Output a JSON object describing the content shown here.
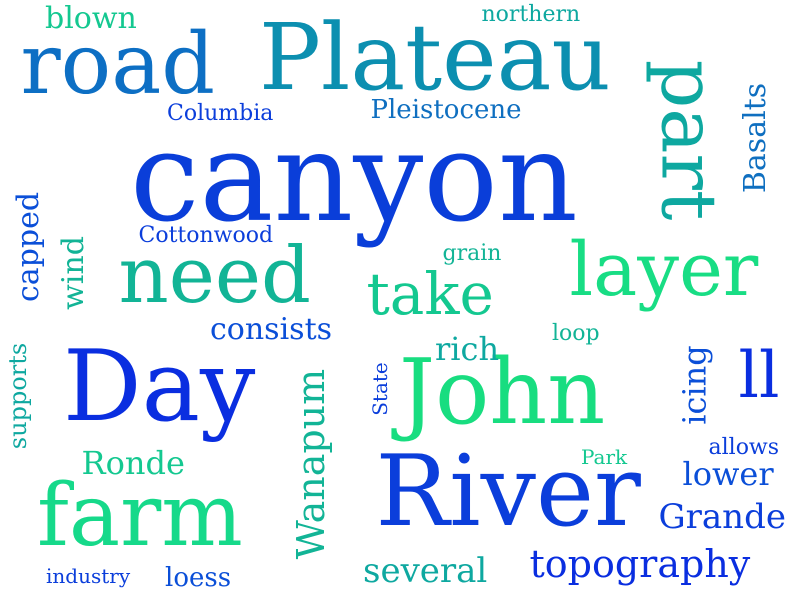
{
  "colors": {
    "background": "#ffffff",
    "palette": [
      "#0a2be0",
      "#0b4fd8",
      "#0f6fc0",
      "#0c8cad",
      "#0ea89a",
      "#10c48a",
      "#16dd84"
    ]
  },
  "words": [
    {
      "id": "canyon",
      "text": "canyon",
      "color": "#0a3ed9"
    },
    {
      "id": "river",
      "text": "River",
      "color": "#0b3edb"
    },
    {
      "id": "plateau",
      "text": "Plateau",
      "color": "#0c8fb0"
    },
    {
      "id": "road",
      "text": "road",
      "color": "#0d6fc4"
    },
    {
      "id": "day",
      "text": "Day",
      "color": "#0a2ee0"
    },
    {
      "id": "john",
      "text": "John",
      "color": "#18dd80"
    },
    {
      "id": "farm",
      "text": "farm",
      "color": "#16d98a"
    },
    {
      "id": "need",
      "text": "need",
      "color": "#12b496"
    },
    {
      "id": "layer",
      "text": "layer",
      "color": "#18dd84"
    },
    {
      "id": "part",
      "text": "part",
      "color": "#0ea8a0"
    },
    {
      "id": "take",
      "text": "take",
      "color": "#14c890"
    },
    {
      "id": "ll",
      "text": "ll",
      "color": "#0a2ee0"
    },
    {
      "id": "topography",
      "text": "topography",
      "color": "#0a2ee0"
    },
    {
      "id": "grande",
      "text": "Grande",
      "color": "#0b3edb"
    },
    {
      "id": "wanapum",
      "text": "Wanapum",
      "color": "#12b496"
    },
    {
      "id": "several",
      "text": "several",
      "color": "#0ea8a0"
    },
    {
      "id": "lower",
      "text": "lower",
      "color": "#0b4fd8"
    },
    {
      "id": "ronde",
      "text": "Ronde",
      "color": "#14c890"
    },
    {
      "id": "consists",
      "text": "consists",
      "color": "#0b4fd8"
    },
    {
      "id": "basalts",
      "text": "Basalts",
      "color": "#0f6fc0"
    },
    {
      "id": "icing",
      "text": "icing",
      "color": "#0b4fd8"
    },
    {
      "id": "capped",
      "text": "capped",
      "color": "#0b4fd8"
    },
    {
      "id": "rich",
      "text": "rich",
      "color": "#0ea8a0"
    },
    {
      "id": "wind",
      "text": "wind",
      "color": "#12b496"
    },
    {
      "id": "pleistocene",
      "text": "Pleistocene",
      "color": "#0f6fc0"
    },
    {
      "id": "blown",
      "text": "blown",
      "color": "#14c890"
    },
    {
      "id": "supports",
      "text": "supports",
      "color": "#0ea8a0"
    },
    {
      "id": "loess",
      "text": "loess",
      "color": "#0b4fd8"
    },
    {
      "id": "columbia",
      "text": "Columbia",
      "color": "#0b3edb"
    },
    {
      "id": "cottonwood",
      "text": "Cottonwood",
      "color": "#0b3edb"
    },
    {
      "id": "northern",
      "text": "northern",
      "color": "#0ea8a0"
    },
    {
      "id": "grain",
      "text": "grain",
      "color": "#12b496"
    },
    {
      "id": "allows",
      "text": "allows",
      "color": "#0b3edb"
    },
    {
      "id": "industry",
      "text": "industry",
      "color": "#0b3edb"
    },
    {
      "id": "loop",
      "text": "loop",
      "color": "#12b496"
    },
    {
      "id": "state",
      "text": "State",
      "color": "#0b3edb"
    },
    {
      "id": "park",
      "text": "Park",
      "color": "#14c890"
    }
  ]
}
